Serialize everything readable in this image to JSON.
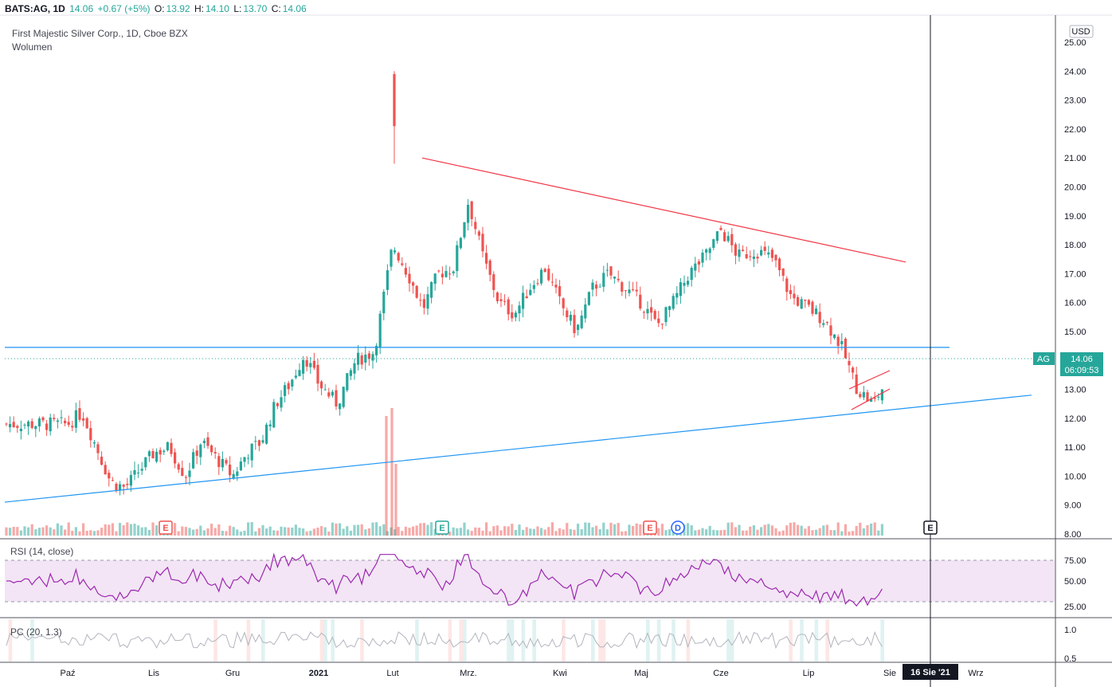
{
  "header": {
    "symbol": "BATS:AG, 1D",
    "last": "14.06",
    "change": "+0.67 (+5%)",
    "o_label": "O:",
    "o": "13.92",
    "h_label": "H:",
    "h": "14.10",
    "l_label": "L:",
    "l": "13.70",
    "c_label": "C:",
    "c": "14.06"
  },
  "legend": {
    "title": "First Majestic Silver Corp., 1D, Cboe BZX",
    "volume_label": "Wolumen"
  },
  "currency": "USD",
  "price_tag": {
    "symbol": "AG",
    "price": "14.06",
    "countdown": "06:09:53"
  },
  "crosshair_date": "16 Sie '21",
  "x_ticks": [
    "Paź",
    "Lis",
    "Gru",
    "2021",
    "Lut",
    "Mrz.",
    "Kwi",
    "Maj",
    "Cze",
    "Lip",
    "Sie",
    "Wrz"
  ],
  "y_ticks": [
    "25.00",
    "24.00",
    "23.00",
    "22.00",
    "21.00",
    "20.00",
    "19.00",
    "18.00",
    "17.00",
    "16.00",
    "15.00",
    "14.00",
    "13.00",
    "12.00",
    "11.00",
    "10.00",
    "9.00",
    "8.00"
  ],
  "rsi": {
    "label": "RSI (14, close)",
    "ticks": [
      "75.00",
      "50.00",
      "25.00"
    ]
  },
  "pc": {
    "label": "PC (20, 1.3)",
    "ticks": [
      "1.0",
      "0.5"
    ]
  },
  "events": [
    "E",
    "E",
    "E",
    "D",
    "E"
  ],
  "colors": {
    "up": "#26a69a",
    "down": "#ef5350",
    "trend_red": "#f23645",
    "trend_blue": "#2196f3",
    "rsi": "#9c27b0"
  },
  "chart_data": {
    "type": "candlestick",
    "title": "First Majestic Silver Corp., 1D, Cboe BZX",
    "ylim": [
      8,
      25.5
    ],
    "x_categories": [
      "Paź",
      "Lis",
      "Gru",
      "2021",
      "Lut",
      "Mrz.",
      "Kwi",
      "Maj",
      "Cze",
      "Lip",
      "Sie",
      "Wrz"
    ],
    "close_path": [
      [
        "Paź",
        11.8
      ],
      [
        "Paź",
        12.2
      ],
      [
        "Paź",
        11.0
      ],
      [
        "Paź",
        9.8
      ],
      [
        "Paź",
        9.6
      ],
      [
        "Paź",
        10.2
      ],
      [
        "Lis",
        10.8
      ],
      [
        "Lis",
        11.0
      ],
      [
        "Lis",
        10.0
      ],
      [
        "Lis",
        11.2
      ],
      [
        "Lis",
        10.6
      ],
      [
        "Gru",
        10.0
      ],
      [
        "Gru",
        10.8
      ],
      [
        "Gru",
        11.2
      ],
      [
        "Gru",
        12.5
      ],
      [
        "Gru",
        13.2
      ],
      [
        "Gru",
        14.2
      ],
      [
        "2021",
        13.2
      ],
      [
        "2021",
        12.5
      ],
      [
        "2021",
        14.0
      ],
      [
        "2021",
        14.3
      ],
      [
        "Lut",
        18.0
      ],
      [
        "Lut",
        17.0
      ],
      [
        "Lut",
        15.8
      ],
      [
        "Lut",
        17.0
      ],
      [
        "Lut",
        17.2
      ],
      [
        "Mrz.",
        19.5
      ],
      [
        "Mrz.",
        17.5
      ],
      [
        "Mrz.",
        16.0
      ],
      [
        "Mrz.",
        15.6
      ],
      [
        "Mrz.",
        16.5
      ],
      [
        "Mrz.",
        17.2
      ],
      [
        "Kwi",
        16.0
      ],
      [
        "Kwi",
        15.0
      ],
      [
        "Kwi",
        16.5
      ],
      [
        "Kwi",
        17.0
      ],
      [
        "Kwi",
        16.5
      ],
      [
        "Maj",
        16.0
      ],
      [
        "Maj",
        15.2
      ],
      [
        "Maj",
        16.0
      ],
      [
        "Maj",
        17.0
      ],
      [
        "Maj",
        17.6
      ],
      [
        "Cze",
        18.5
      ],
      [
        "Cze",
        17.6
      ],
      [
        "Cze",
        17.8
      ],
      [
        "Cze",
        17.5
      ],
      [
        "Cze",
        16.2
      ],
      [
        "Lip",
        15.8
      ],
      [
        "Lip",
        15.4
      ],
      [
        "Lip",
        14.5
      ],
      [
        "Lip",
        13.0
      ],
      [
        "Lip",
        12.5
      ],
      [
        "Sie",
        13.5
      ],
      [
        "Sie",
        14.06
      ]
    ],
    "spike": {
      "x": "Lut",
      "high": 24.0,
      "low": 20.8
    },
    "trendlines": [
      {
        "color": "red",
        "from": [
          "Lut",
          21.0
        ],
        "to": [
          "Wrz",
          17.4
        ]
      },
      {
        "color": "blue",
        "from": [
          "Paź",
          14.45
        ],
        "to": [
          "Sie",
          14.45
        ]
      },
      {
        "color": "blue",
        "from": [
          "Paź",
          9.1
        ],
        "to": [
          "Wrz",
          12.8
        ]
      }
    ],
    "last_price": 14.06
  }
}
